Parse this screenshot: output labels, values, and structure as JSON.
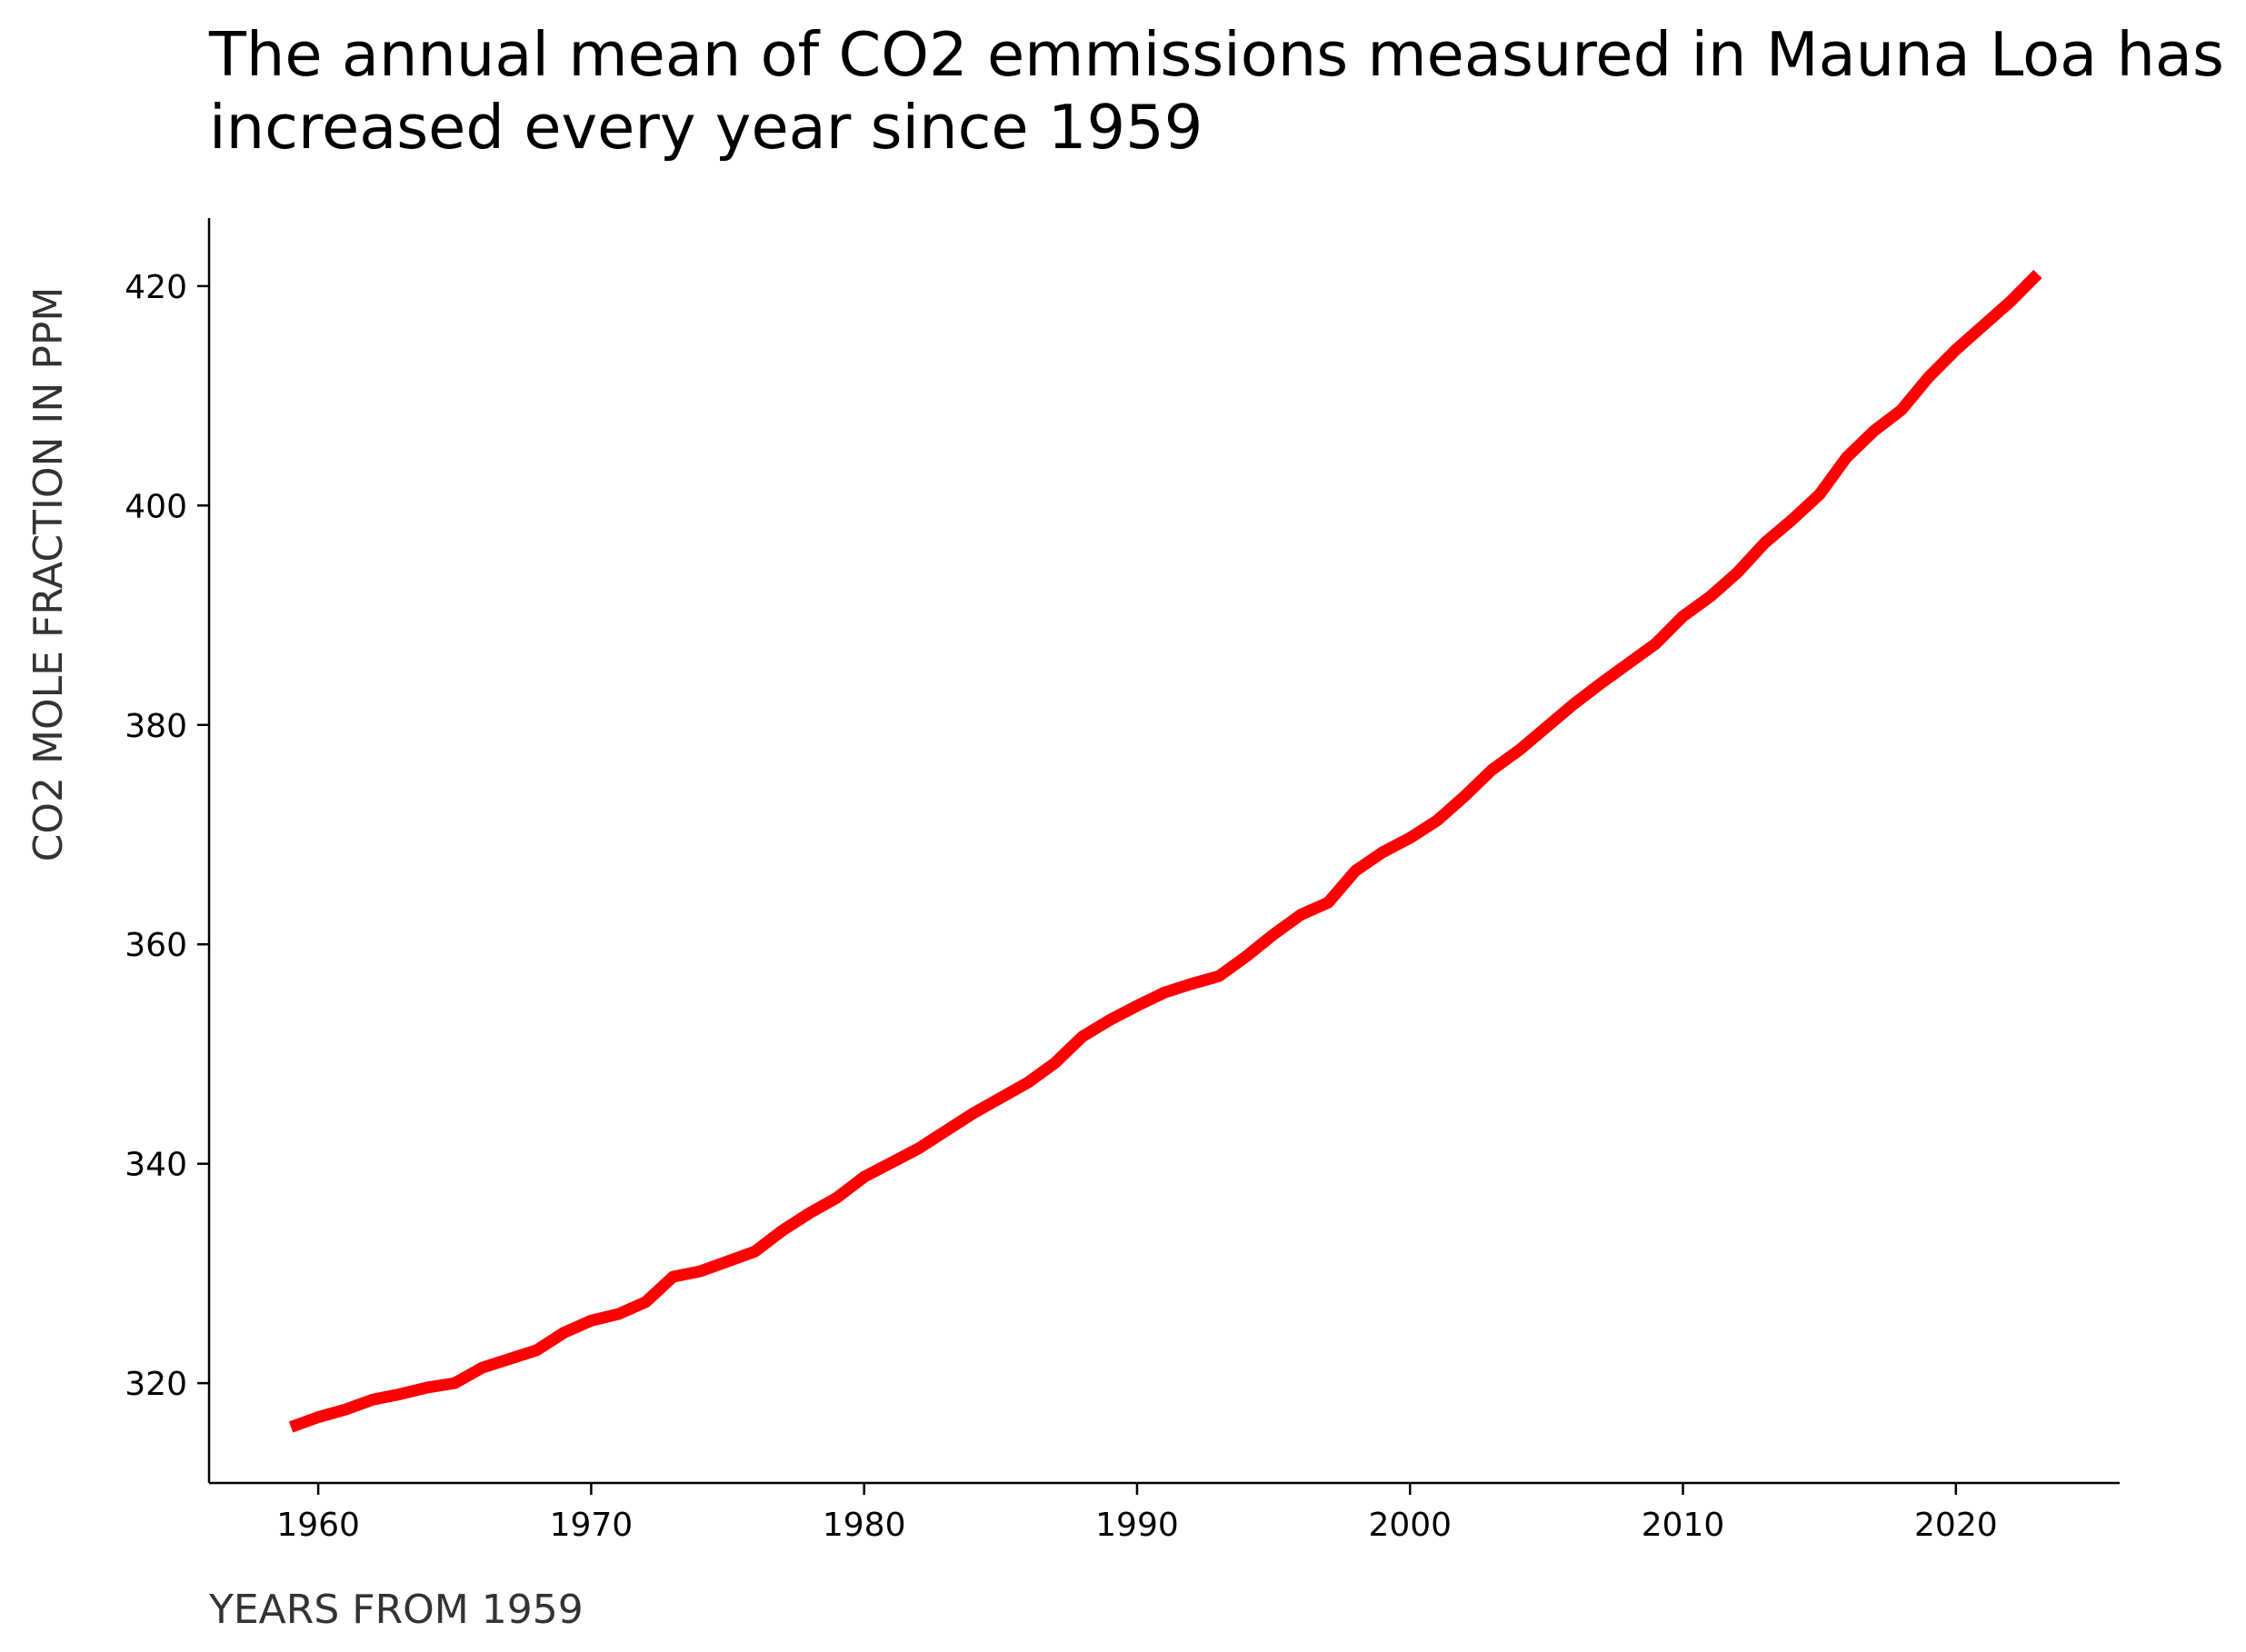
{
  "chart_data": {
    "type": "line",
    "title": "The annual mean of CO2 emmissions measured in Mauna Loa has increased every year since 1959",
    "xlabel": "YEARS FROM 1959",
    "ylabel": "CO2 MOLE FRACTION IN PPM",
    "xlim": [
      1956,
      2026
    ],
    "ylim": [
      310.9,
      426.2
    ],
    "x_ticks": [
      1960,
      1970,
      1980,
      1990,
      2000,
      2010,
      2020
    ],
    "y_ticks": [
      320,
      340,
      360,
      380,
      400,
      420
    ],
    "grid": false,
    "legend": "none",
    "line_color": "#ff0000",
    "series": [
      {
        "x": [
          1959,
          1960,
          1961,
          1962,
          1963,
          1964,
          1965,
          1966,
          1967,
          1968,
          1969,
          1970,
          1971,
          1972,
          1973,
          1974,
          1975,
          1976,
          1977,
          1978,
          1979,
          1980,
          1981,
          1982,
          1983,
          1984,
          1985,
          1986,
          1987,
          1988,
          1989,
          1990,
          1991,
          1992,
          1993,
          1994,
          1995,
          1996,
          1997,
          1998,
          1999,
          2000,
          2001,
          2002,
          2003,
          2004,
          2005,
          2006,
          2007,
          2008,
          2009,
          2010,
          2011,
          2012,
          2013,
          2014,
          2015,
          2016,
          2017,
          2018,
          2019,
          2020,
          2021,
          2022,
          2023
        ],
        "values": [
          316.0,
          316.9,
          317.6,
          318.5,
          319.0,
          319.6,
          320.0,
          321.4,
          322.2,
          323.0,
          324.6,
          325.7,
          326.3,
          327.4,
          329.7,
          330.2,
          331.1,
          332.0,
          333.9,
          335.5,
          336.9,
          338.8,
          340.1,
          341.4,
          343.0,
          344.6,
          346.0,
          347.4,
          349.2,
          351.6,
          353.1,
          354.4,
          355.6,
          356.4,
          357.1,
          358.9,
          360.9,
          362.7,
          363.8,
          366.7,
          368.4,
          369.7,
          371.3,
          373.5,
          375.9,
          377.7,
          379.8,
          381.9,
          383.8,
          385.6,
          387.4,
          389.9,
          391.7,
          393.9,
          396.6,
          398.7,
          401.0,
          404.4,
          406.8,
          408.7,
          411.7,
          414.2,
          416.4,
          418.6,
          421.1
        ]
      }
    ]
  }
}
